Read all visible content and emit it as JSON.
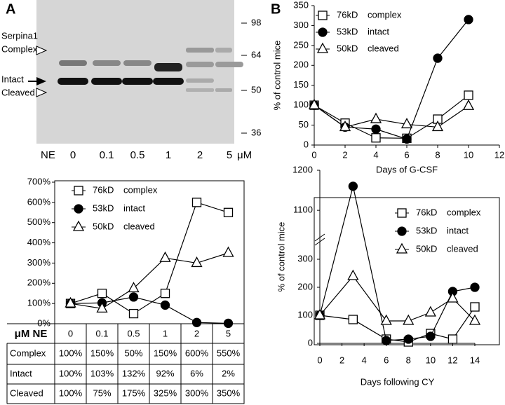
{
  "blot": {
    "panel": "A",
    "markers": [
      98,
      64,
      50,
      36
    ],
    "labels": [
      "Serpina1",
      "Complex",
      "Intact",
      "Cleaved"
    ],
    "lane_prefix": "NE",
    "lanes": [
      "0",
      "0.1",
      "0.5",
      "1",
      "2",
      "5"
    ],
    "unit": "μM"
  },
  "panel_b": "B",
  "chart_data": [
    {
      "type": "line",
      "x_label": "μM NE",
      "categories": [
        "0",
        "0.1",
        "0.5",
        "1",
        "2",
        "5"
      ],
      "ylim": [
        0,
        700
      ],
      "yticks": [
        {
          "value": 0,
          "label": "0%"
        },
        {
          "value": 100,
          "label": "100%"
        },
        {
          "value": 200,
          "label": "200%"
        },
        {
          "value": 300,
          "label": "300%"
        },
        {
          "value": 400,
          "label": "400%"
        },
        {
          "value": 500,
          "label": "500%"
        },
        {
          "value": 600,
          "label": "600%"
        },
        {
          "value": 700,
          "label": "700%"
        }
      ],
      "series": [
        {
          "name": "76kD complex",
          "row_label": "Complex",
          "color": "#000000",
          "marker": "square",
          "values": [
            100,
            150,
            50,
            150,
            600,
            550
          ],
          "value_labels": [
            "100%",
            "150%",
            "50%",
            "150%",
            "600%",
            "550%"
          ]
        },
        {
          "name": "53kD intact",
          "row_label": "Intact",
          "color": "#000000",
          "marker": "circle",
          "values": [
            100,
            103,
            132,
            92,
            6,
            2
          ],
          "value_labels": [
            "100%",
            "103%",
            "132%",
            "92%",
            "6%",
            "2%"
          ]
        },
        {
          "name": "50kD cleaved",
          "row_label": "Cleaved",
          "color": "#000000",
          "marker": "triangle",
          "values": [
            100,
            75,
            175,
            325,
            300,
            350
          ],
          "value_labels": [
            "100%",
            "75%",
            "175%",
            "325%",
            "300%",
            "350%"
          ]
        }
      ]
    },
    {
      "type": "line",
      "x_label": "Days of G-CSF",
      "y_label": "% of control mice",
      "x": [
        0,
        2,
        4,
        6,
        8,
        10
      ],
      "xlim": [
        0,
        12
      ],
      "xticks": [
        0,
        2,
        4,
        6,
        8,
        10,
        12
      ],
      "ylim": [
        0,
        350
      ],
      "yticks": [
        0,
        50,
        100,
        150,
        200,
        250,
        300,
        350
      ],
      "series": [
        {
          "name": "76kD complex",
          "color": "#000000",
          "marker": "square",
          "values": [
            100,
            55,
            18,
            17,
            65,
            125
          ]
        },
        {
          "name": "53kD intact",
          "color": "#000000",
          "marker": "circle",
          "values": [
            100,
            45,
            40,
            15,
            218,
            315
          ]
        },
        {
          "name": "50kD cleaved",
          "color": "#000000",
          "marker": "triangle",
          "values": [
            100,
            45,
            65,
            52,
            45,
            98
          ]
        }
      ]
    },
    {
      "type": "line",
      "x_label": "Days following CY",
      "y_label": "% of control mice",
      "x": [
        0,
        3,
        6,
        8,
        10,
        12,
        14
      ],
      "xlim": [
        0,
        14
      ],
      "xticks": [
        0,
        2,
        4,
        6,
        8,
        10,
        12,
        14
      ],
      "ylim": [
        0,
        1200
      ],
      "ybreak": [
        330,
        1060
      ],
      "yticks": [
        0,
        100,
        200,
        300,
        1100,
        1200
      ],
      "series": [
        {
          "name": "76kD complex",
          "color": "#000000",
          "marker": "square",
          "values": [
            100,
            85,
            15,
            5,
            35,
            15,
            130
          ]
        },
        {
          "name": "53kD intact",
          "color": "#000000",
          "marker": "circle",
          "values": [
            100,
            1160,
            10,
            15,
            25,
            185,
            200
          ]
        },
        {
          "name": "50kD cleaved",
          "color": "#000000",
          "marker": "triangle",
          "values": [
            100,
            240,
            80,
            80,
            110,
            160,
            80
          ]
        }
      ]
    }
  ]
}
